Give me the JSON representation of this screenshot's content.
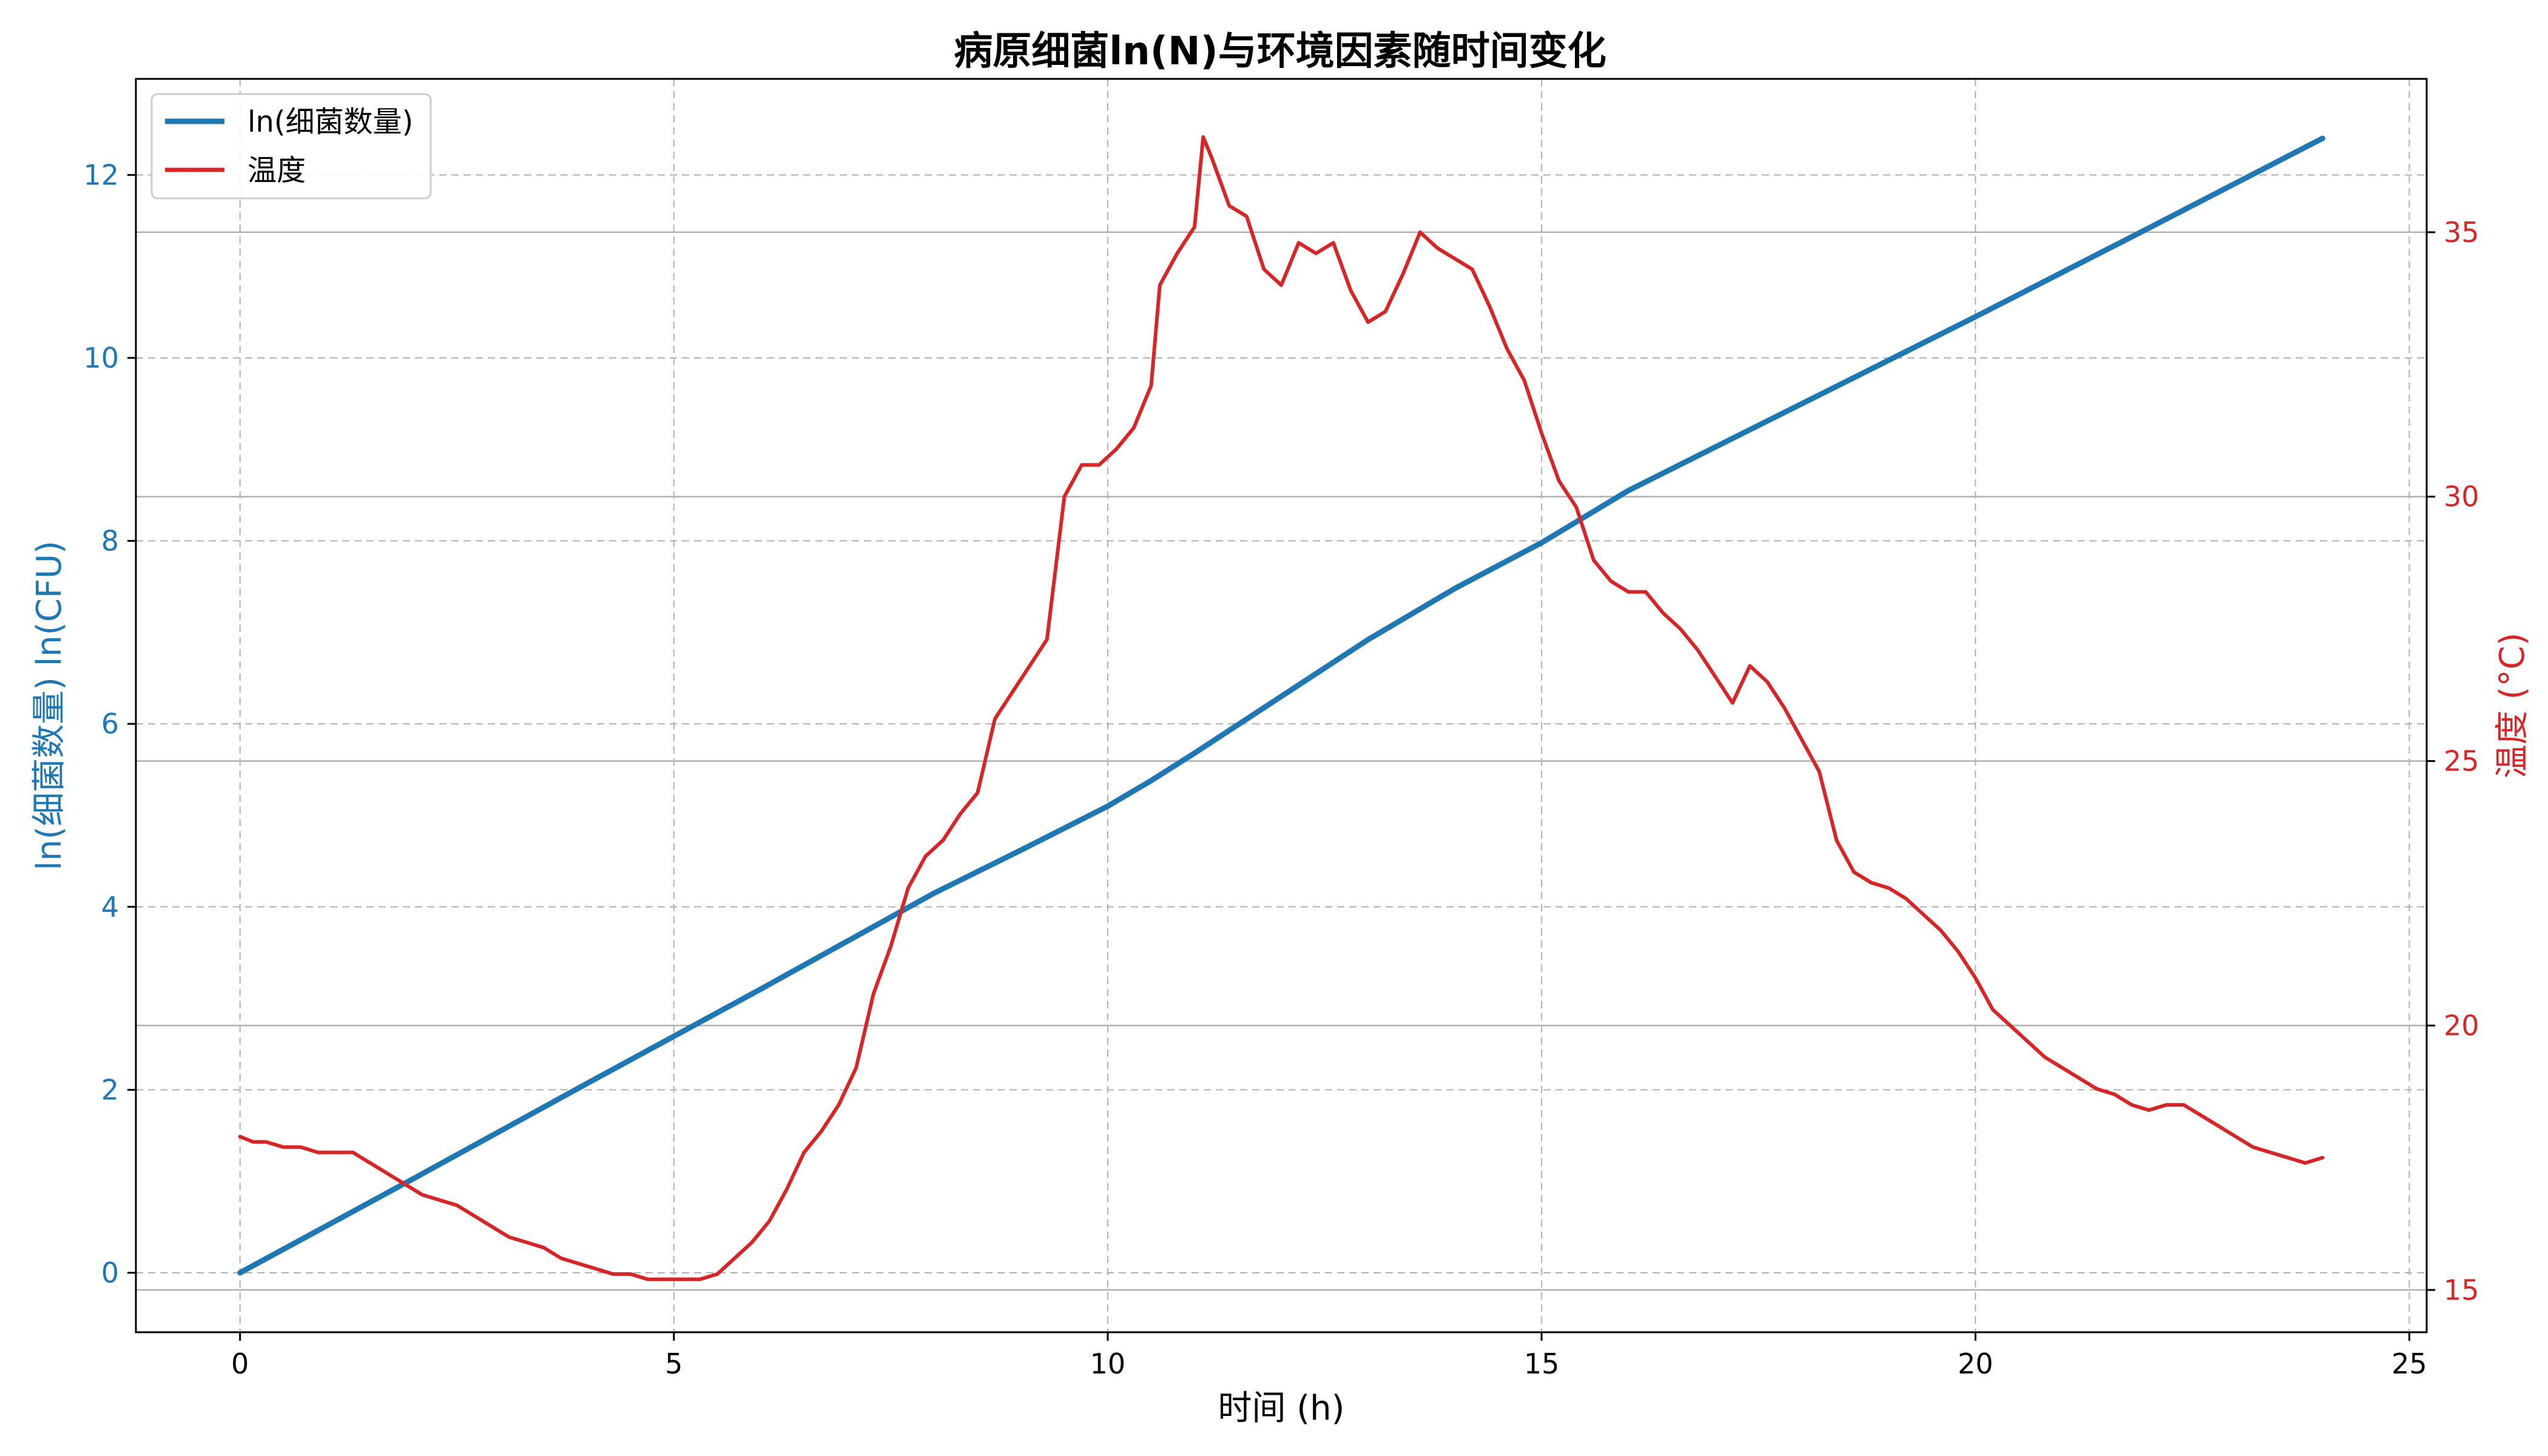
{
  "chart_data": {
    "type": "line",
    "title": "病原细菌ln(N)与环境因素随时间变化",
    "xlabel": "时间 (h)",
    "ylabel_left": "ln(细菌数量) ln(CFU)",
    "ylabel_right": "温度 (°C)",
    "xlim": [
      -1.2,
      25.2
    ],
    "ylim_left": [
      -0.65,
      13.05
    ],
    "ylim_right": [
      14.2,
      37.9
    ],
    "x_ticks": [
      0,
      5,
      10,
      15,
      20,
      25
    ],
    "y_left_ticks": [
      0,
      2,
      4,
      6,
      8,
      10,
      12
    ],
    "y_right_ticks": [
      15,
      20,
      25,
      30,
      35
    ],
    "grid": true,
    "legend_position": "top-left",
    "colors": {
      "bacteria": "#1f77b4",
      "temperature": "#d62728"
    },
    "series": [
      {
        "name": "ln(细菌数量)",
        "axis": "left",
        "x": [
          0,
          2,
          4,
          6,
          8,
          9,
          10,
          10.5,
          11,
          12,
          13,
          14,
          15,
          16,
          18,
          20,
          22,
          24
        ],
        "y": [
          0,
          1.03,
          2.07,
          3.1,
          4.15,
          4.62,
          5.1,
          5.38,
          5.68,
          6.3,
          6.92,
          7.48,
          7.98,
          8.55,
          9.5,
          10.45,
          11.42,
          12.4
        ]
      },
      {
        "name": "温度",
        "axis": "right",
        "x": [
          0,
          0.15,
          0.3,
          0.5,
          0.7,
          0.9,
          1.1,
          1.3,
          1.5,
          1.7,
          1.9,
          2.1,
          2.3,
          2.5,
          2.7,
          2.9,
          3.1,
          3.3,
          3.5,
          3.7,
          3.9,
          4.1,
          4.3,
          4.5,
          4.7,
          4.9,
          5.1,
          5.3,
          5.5,
          5.7,
          5.9,
          6.1,
          6.3,
          6.5,
          6.7,
          6.9,
          7.1,
          7.3,
          7.5,
          7.7,
          7.9,
          8.1,
          8.3,
          8.5,
          8.7,
          8.9,
          9.1,
          9.3,
          9.5,
          9.7,
          9.9,
          10.1,
          10.3,
          10.5,
          10.6,
          10.8,
          11.0,
          11.1,
          11.2,
          11.4,
          11.6,
          11.8,
          12.0,
          12.2,
          12.4,
          12.6,
          12.8,
          13.0,
          13.2,
          13.4,
          13.6,
          13.8,
          14.0,
          14.2,
          14.4,
          14.6,
          14.8,
          15.0,
          15.2,
          15.4,
          15.6,
          15.8,
          16.0,
          16.2,
          16.4,
          16.6,
          16.8,
          17.0,
          17.2,
          17.4,
          17.6,
          17.8,
          18.0,
          18.2,
          18.4,
          18.6,
          18.8,
          19.0,
          19.2,
          19.4,
          19.6,
          19.8,
          20.0,
          20.2,
          20.4,
          20.6,
          20.8,
          21.0,
          21.2,
          21.4,
          21.6,
          21.8,
          22.0,
          22.2,
          22.4,
          22.6,
          22.8,
          23.0,
          23.2,
          23.4,
          23.6,
          23.8,
          24.0
        ],
        "y": [
          17.9,
          17.8,
          17.8,
          17.7,
          17.7,
          17.6,
          17.6,
          17.6,
          17.4,
          17.2,
          17.0,
          16.8,
          16.7,
          16.6,
          16.4,
          16.2,
          16.0,
          15.9,
          15.8,
          15.6,
          15.5,
          15.4,
          15.3,
          15.3,
          15.2,
          15.2,
          15.2,
          15.2,
          15.3,
          15.6,
          15.9,
          16.3,
          16.9,
          17.6,
          18.0,
          18.5,
          19.2,
          20.6,
          21.5,
          22.6,
          23.2,
          23.5,
          24.0,
          24.4,
          25.8,
          26.3,
          26.8,
          27.3,
          30.0,
          30.6,
          30.6,
          30.9,
          31.3,
          32.1,
          34.0,
          34.6,
          35.1,
          36.8,
          36.4,
          35.5,
          35.3,
          34.3,
          34.0,
          34.8,
          34.6,
          34.8,
          33.9,
          33.3,
          33.5,
          34.2,
          35.0,
          34.7,
          34.5,
          34.3,
          33.6,
          32.8,
          32.2,
          31.2,
          30.3,
          29.8,
          28.8,
          28.4,
          28.2,
          28.2,
          27.8,
          27.5,
          27.1,
          26.6,
          26.1,
          26.8,
          26.5,
          26.0,
          25.4,
          24.8,
          23.5,
          22.9,
          22.7,
          22.6,
          22.4,
          22.1,
          21.8,
          21.4,
          20.9,
          20.3,
          20.0,
          19.7,
          19.4,
          19.2,
          19.0,
          18.8,
          18.7,
          18.5,
          18.4,
          18.5,
          18.5,
          18.3,
          18.1,
          17.9,
          17.7,
          17.6,
          17.5,
          17.4,
          17.5
        ]
      }
    ]
  }
}
